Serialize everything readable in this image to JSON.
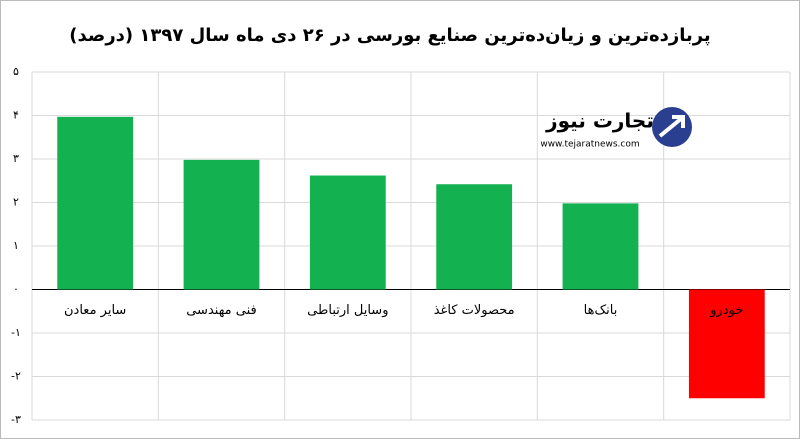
{
  "chart_data": {
    "type": "bar",
    "title": "پربازده‌ترین و زیان‌ده‌ترین صنایع بورسی در ۲۶ دی ماه سال ۱۳۹۷ (درصد)",
    "categories": [
      "سایر معادن",
      "فنی مهندسی",
      "وسایل ارتباطی",
      "محصولات کاغذ",
      "بانک‌ها",
      "خودرو"
    ],
    "values": [
      3.97,
      2.98,
      2.62,
      2.42,
      1.98,
      -2.5
    ],
    "colors": [
      "#13b14f",
      "#13b14f",
      "#13b14f",
      "#13b14f",
      "#13b14f",
      "#ff0000"
    ],
    "ylim": [
      -3,
      5
    ],
    "yticks": [
      {
        "value": -3,
        "label": "-۳"
      },
      {
        "value": -2,
        "label": "-۲"
      },
      {
        "value": -1,
        "label": "-۱"
      },
      {
        "value": 0,
        "label": "۰"
      },
      {
        "value": 1,
        "label": "۱"
      },
      {
        "value": 2,
        "label": "۲"
      },
      {
        "value": 3,
        "label": "۳"
      },
      {
        "value": 4,
        "label": "۴"
      },
      {
        "value": 5,
        "label": "۵"
      }
    ],
    "grid": true,
    "logo_text": "تجارت نیوز",
    "logo_url": "www.tejaratnews.com"
  }
}
